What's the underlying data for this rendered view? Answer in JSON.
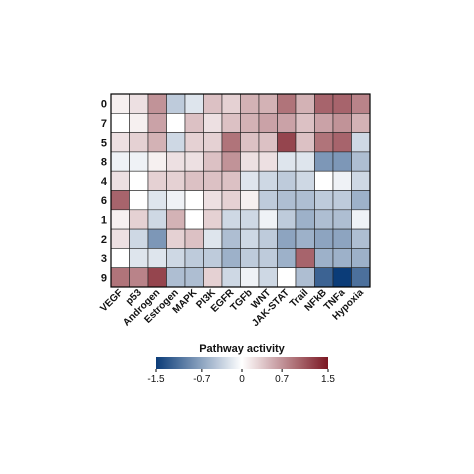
{
  "chart_data": {
    "type": "heatmap",
    "rows": [
      "0",
      "7",
      "5",
      "8",
      "4",
      "6",
      "1",
      "2",
      "3",
      "9"
    ],
    "columns": [
      "VEGF",
      "p53",
      "Androgen",
      "Estrogen",
      "MAPK",
      "PI3K",
      "EGFR",
      "TGFb",
      "WNT",
      "JAK-STAT",
      "Trail",
      "NFkB",
      "TNFa",
      "Hypoxia"
    ],
    "values": [
      [
        0.1,
        0.2,
        0.7,
        -0.4,
        -0.2,
        0.4,
        0.3,
        0.5,
        0.5,
        0.9,
        0.5,
        1.0,
        1.0,
        0.8
      ],
      [
        0.0,
        0.1,
        0.6,
        0.0,
        0.4,
        0.2,
        0.4,
        0.5,
        0.6,
        0.6,
        0.4,
        0.6,
        0.7,
        0.5
      ],
      [
        0.2,
        0.3,
        0.5,
        -0.3,
        0.3,
        0.3,
        0.9,
        0.4,
        0.4,
        1.2,
        0.4,
        0.9,
        1.0,
        -0.3
      ],
      [
        -0.1,
        -0.1,
        0.1,
        0.2,
        0.2,
        0.4,
        0.7,
        0.2,
        0.2,
        -0.2,
        -0.2,
        -0.8,
        -0.8,
        -0.5
      ],
      [
        0.2,
        0.0,
        0.3,
        0.3,
        0.4,
        0.4,
        0.4,
        -0.2,
        -0.3,
        -0.4,
        -0.3,
        0.0,
        -0.1,
        -0.3
      ],
      [
        1.0,
        0.0,
        -0.2,
        -0.1,
        0.0,
        0.2,
        0.3,
        0.1,
        -0.4,
        -0.5,
        -0.5,
        -0.4,
        -0.4,
        -0.6
      ],
      [
        0.1,
        0.3,
        -0.3,
        0.5,
        0.0,
        0.3,
        -0.3,
        -0.3,
        -0.1,
        -0.4,
        -0.6,
        -0.5,
        -0.5,
        -0.1
      ],
      [
        0.2,
        -0.3,
        -0.8,
        0.3,
        0.4,
        -0.2,
        -0.5,
        -0.3,
        -0.4,
        -0.7,
        -0.6,
        -0.7,
        -0.7,
        -0.5
      ],
      [
        0.0,
        -0.2,
        -0.2,
        -0.3,
        -0.4,
        -0.4,
        -0.6,
        -0.4,
        -0.4,
        -0.6,
        1.0,
        -0.6,
        -0.6,
        -0.6
      ],
      [
        0.9,
        0.8,
        1.2,
        -0.5,
        -0.5,
        0.3,
        -0.3,
        -0.1,
        -0.3,
        0.0,
        -0.5,
        -1.2,
        -1.5,
        -1.1
      ]
    ],
    "colorbar": {
      "title": "Pathway activity",
      "min": -1.5,
      "max": 1.5,
      "ticks": [
        -1.5,
        -0.7,
        0,
        0.7,
        1.5
      ],
      "tick_labels": [
        "-1.5",
        "-0.7",
        "0",
        "0.7",
        "1.5"
      ],
      "low_color": "#0b3c78",
      "mid_color": "#ffffff",
      "high_color": "#7b1722"
    },
    "grid": true,
    "legend_position": "bottom"
  }
}
